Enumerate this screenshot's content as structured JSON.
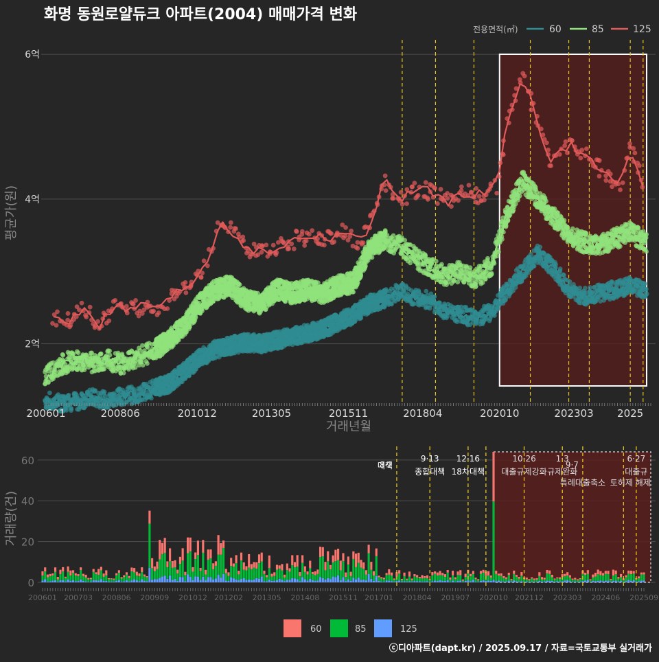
{
  "title": "화명 동원로얄듀크 아파트(2004) 매매가격 변화",
  "credit": "ⓒ디아파트(dapt.kr) / 2025.09.17 / 자료=국토교통부 실거래가",
  "colors": {
    "background": "#262626",
    "grid": "#4d4d4d",
    "s60": "#2f8c92",
    "s85": "#90e27c",
    "s125": "#e05a5a",
    "bar60": "#f8766d",
    "bar85": "#00ba38",
    "bar125": "#619cff",
    "policy_line": "#e8c619",
    "highlight_fill": "#5a1e1e",
    "highlight_border": "#ffffff"
  },
  "chart_data": [
    {
      "type": "line",
      "panel": "price",
      "xlabel": "거래년월",
      "ylabel": "평균가(원)",
      "legend_title": "전용면적(㎡)",
      "legend_position": "top-right",
      "x_ticks": [
        "200601",
        "200806",
        "201012",
        "201305",
        "201511",
        "201804",
        "202010",
        "202303",
        "2025"
      ],
      "y_ticks": [
        {
          "value": 2,
          "label": "2억"
        },
        {
          "value": 4,
          "label": "4억"
        },
        {
          "value": 6,
          "label": "6억"
        }
      ],
      "xlim": [
        "2006-01",
        "2025-09"
      ],
      "ylim": [
        1.2,
        6.2
      ],
      "y_unit": "억원",
      "series": [
        {
          "name": "60",
          "points": [
            [
              "2006-01",
              1.22
            ],
            [
              "2006-07",
              1.18
            ],
            [
              "2007-01",
              1.2
            ],
            [
              "2007-07",
              1.26
            ],
            [
              "2008-01",
              1.22
            ],
            [
              "2008-07",
              1.28
            ],
            [
              "2009-01",
              1.3
            ],
            [
              "2009-07",
              1.38
            ],
            [
              "2010-01",
              1.45
            ],
            [
              "2010-07",
              1.62
            ],
            [
              "2011-01",
              1.8
            ],
            [
              "2011-07",
              1.92
            ],
            [
              "2012-01",
              1.98
            ],
            [
              "2012-07",
              2.02
            ],
            [
              "2013-01",
              2.0
            ],
            [
              "2013-07",
              2.05
            ],
            [
              "2014-01",
              2.1
            ],
            [
              "2014-07",
              2.15
            ],
            [
              "2015-01",
              2.2
            ],
            [
              "2015-07",
              2.3
            ],
            [
              "2016-01",
              2.4
            ],
            [
              "2016-07",
              2.55
            ],
            [
              "2017-01",
              2.62
            ],
            [
              "2017-07",
              2.72
            ],
            [
              "2018-01",
              2.65
            ],
            [
              "2018-07",
              2.6
            ],
            [
              "2019-01",
              2.45
            ],
            [
              "2019-07",
              2.4
            ],
            [
              "2020-01",
              2.35
            ],
            [
              "2020-07",
              2.45
            ],
            [
              "2021-01",
              2.75
            ],
            [
              "2021-07",
              3.0
            ],
            [
              "2022-01",
              3.25
            ],
            [
              "2022-07",
              3.05
            ],
            [
              "2023-01",
              2.75
            ],
            [
              "2023-07",
              2.65
            ],
            [
              "2024-01",
              2.7
            ],
            [
              "2024-07",
              2.75
            ],
            [
              "2025-01",
              2.8
            ],
            [
              "2025-07",
              2.75
            ]
          ]
        },
        {
          "name": "85",
          "points": [
            [
              "2006-01",
              1.55
            ],
            [
              "2006-07",
              1.72
            ],
            [
              "2007-01",
              1.78
            ],
            [
              "2007-07",
              1.74
            ],
            [
              "2008-01",
              1.78
            ],
            [
              "2008-07",
              1.72
            ],
            [
              "2009-01",
              1.82
            ],
            [
              "2009-07",
              1.9
            ],
            [
              "2010-01",
              2.05
            ],
            [
              "2010-07",
              2.25
            ],
            [
              "2011-01",
              2.55
            ],
            [
              "2011-07",
              2.75
            ],
            [
              "2012-01",
              2.8
            ],
            [
              "2012-07",
              2.6
            ],
            [
              "2013-01",
              2.55
            ],
            [
              "2013-07",
              2.75
            ],
            [
              "2014-01",
              2.7
            ],
            [
              "2014-07",
              2.75
            ],
            [
              "2015-01",
              2.7
            ],
            [
              "2015-07",
              2.8
            ],
            [
              "2016-01",
              2.85
            ],
            [
              "2016-07",
              3.3
            ],
            [
              "2017-01",
              3.45
            ],
            [
              "2017-07",
              3.35
            ],
            [
              "2018-01",
              3.2
            ],
            [
              "2018-07",
              3.05
            ],
            [
              "2019-01",
              2.95
            ],
            [
              "2019-07",
              3.0
            ],
            [
              "2020-01",
              2.9
            ],
            [
              "2020-07",
              3.1
            ],
            [
              "2021-01",
              3.8
            ],
            [
              "2021-07",
              4.25
            ],
            [
              "2022-01",
              4.0
            ],
            [
              "2022-07",
              3.75
            ],
            [
              "2023-01",
              3.5
            ],
            [
              "2023-07",
              3.4
            ],
            [
              "2024-01",
              3.35
            ],
            [
              "2024-07",
              3.45
            ],
            [
              "2025-01",
              3.55
            ],
            [
              "2025-07",
              3.4
            ]
          ]
        },
        {
          "name": "125",
          "points": [
            [
              "2006-04",
              2.35
            ],
            [
              "2006-10",
              2.3
            ],
            [
              "2007-04",
              2.52
            ],
            [
              "2007-10",
              2.25
            ],
            [
              "2008-04",
              2.55
            ],
            [
              "2008-10",
              2.45
            ],
            [
              "2009-04",
              2.55
            ],
            [
              "2009-10",
              2.5
            ],
            [
              "2010-04",
              2.7
            ],
            [
              "2010-10",
              2.85
            ],
            [
              "2011-04",
              3.15
            ],
            [
              "2011-09",
              3.7
            ],
            [
              "2012-03",
              3.5
            ],
            [
              "2012-09",
              3.3
            ],
            [
              "2013-03",
              3.25
            ],
            [
              "2013-09",
              3.35
            ],
            [
              "2014-03",
              3.45
            ],
            [
              "2014-09",
              3.5
            ],
            [
              "2015-03",
              3.45
            ],
            [
              "2015-09",
              3.55
            ],
            [
              "2016-03",
              3.4
            ],
            [
              "2016-07",
              3.6
            ],
            [
              "2017-01",
              4.25
            ],
            [
              "2017-07",
              4.0
            ],
            [
              "2018-03",
              4.15
            ],
            [
              "2018-09",
              4.05
            ],
            [
              "2019-03",
              3.95
            ],
            [
              "2019-09",
              4.1
            ],
            [
              "2020-03",
              4.05
            ],
            [
              "2020-09",
              4.2
            ],
            [
              "2021-01",
              5.05
            ],
            [
              "2021-07",
              5.72
            ],
            [
              "2022-06",
              4.5
            ],
            [
              "2023-01",
              4.75
            ],
            [
              "2023-09",
              4.55
            ],
            [
              "2024-03",
              4.35
            ],
            [
              "2024-09",
              4.15
            ],
            [
              "2025-01",
              4.75
            ],
            [
              "2025-06",
              4.2
            ]
          ]
        }
      ],
      "policy_lines": [
        "2017-08",
        "2018-09",
        "2019-12",
        "2021-10",
        "2023-01",
        "2023-09",
        "2025-01",
        "2025-06"
      ],
      "highlight_range": [
        "2020-10",
        "2025-09"
      ]
    },
    {
      "type": "bar",
      "panel": "volume",
      "stacked": true,
      "ylabel": "거래량(건)",
      "x_ticks": [
        "200601",
        "200703",
        "200806",
        "200909",
        "201012",
        "201202",
        "201305",
        "201408",
        "201511",
        "201701",
        "201804",
        "201907",
        "202010",
        "202112",
        "202303",
        "202406",
        "202509"
      ],
      "y_ticks": [
        0,
        20,
        40,
        60
      ],
      "ylim": [
        0,
        65
      ],
      "legend_position": "bottom",
      "series_names": [
        "60",
        "85",
        "125"
      ],
      "series_estimated_monthly_total": [
        {
          "range": [
            "2006-01",
            "2009-06"
          ],
          "avg_total": 5
        },
        {
          "range": [
            "2009-07",
            "2011-12"
          ],
          "avg_total": 14
        },
        {
          "range": [
            "2012-01",
            "2014-12"
          ],
          "avg_total": 9
        },
        {
          "range": [
            "2015-01",
            "2016-12"
          ],
          "avg_total": 12
        },
        {
          "range": [
            "2017-01",
            "2020-09"
          ],
          "avg_total": 4
        },
        {
          "range": [
            "2020-10",
            "2020-10"
          ],
          "avg_total": 64
        },
        {
          "range": [
            "2020-11",
            "2025-09"
          ],
          "avg_total": 4
        }
      ],
      "policy_lines": [
        "2017-08",
        "2018-09",
        "2019-12",
        "2020-07",
        "2021-10",
        "2023-01",
        "2023-09",
        "2025-01",
        "2025-06"
      ],
      "highlight_range": [
        "2020-10",
        "2025-09"
      ],
      "annotations": [
        {
          "date": "2017-08",
          "date_label": "8·2",
          "text": "대책",
          "row": 1
        },
        {
          "date": "2018-09",
          "date_label": "9·13",
          "text": "종합대책",
          "row": 0
        },
        {
          "date": "2019-12",
          "date_label": "12·16",
          "text": "18차대책",
          "row": 0
        },
        {
          "date": "2021-10",
          "date_label": "10·26",
          "text": "대출규제강화",
          "row": 0
        },
        {
          "date": "2023-01",
          "date_label": "1·3",
          "text": "규제완화",
          "row": 0
        },
        {
          "date": "2023-09",
          "date_label": "9·7",
          "text": "특례대출축소",
          "row": 1
        },
        {
          "date": "2025-01",
          "date_label": "",
          "text": "토허제 해제",
          "row": 1
        },
        {
          "date": "2025-06",
          "date_label": "6·27",
          "text": "대출규",
          "row": 0
        }
      ]
    }
  ]
}
